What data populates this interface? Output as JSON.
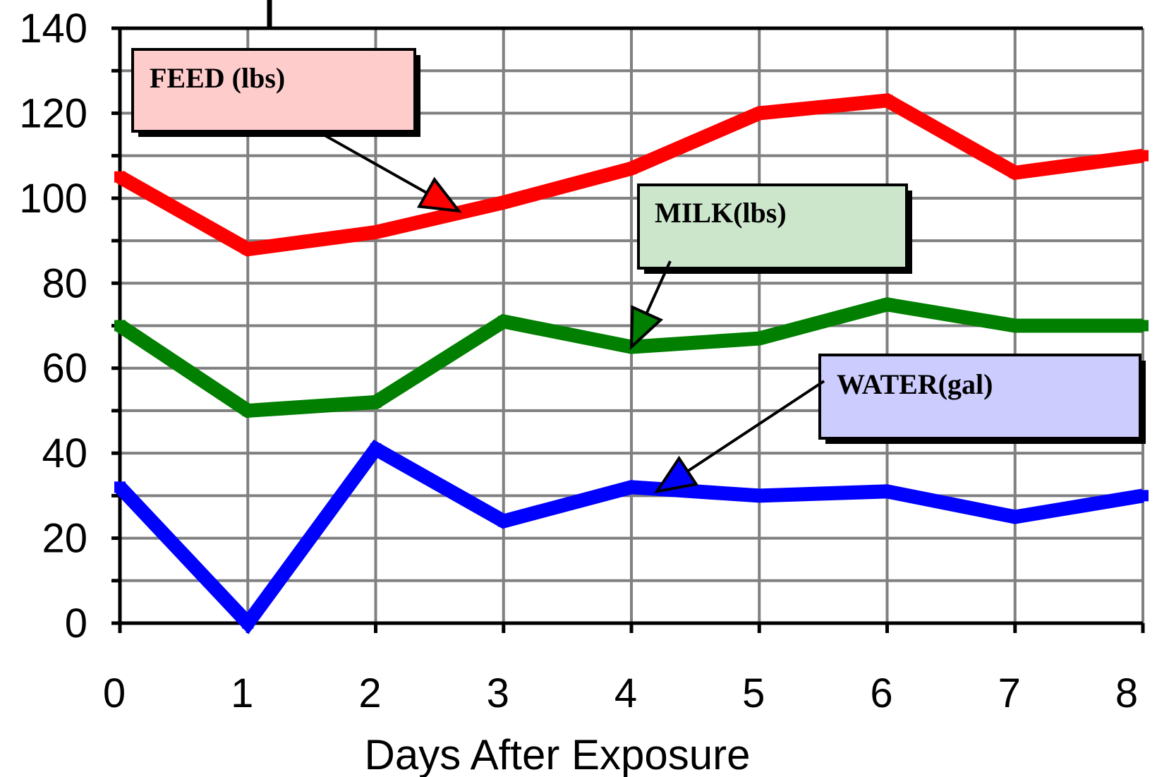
{
  "chart_data": {
    "type": "line",
    "x": [
      0,
      1,
      2,
      3,
      4,
      5,
      6,
      7,
      8
    ],
    "xlim": [
      0,
      8
    ],
    "ylim": [
      0,
      140
    ],
    "xticks": [
      "0",
      "1",
      "2",
      "3",
      "4",
      "5",
      "6",
      "7",
      "8"
    ],
    "yticks": [
      "0",
      "20",
      "40",
      "60",
      "80",
      "100",
      "120",
      "140"
    ],
    "xlabel": "Days After Exposure",
    "grid": true,
    "series": [
      {
        "name": "FEED (lbs)",
        "color": "#ff0000",
        "values": [
          105,
          88,
          92,
          99,
          107,
          120,
          123,
          106,
          110
        ]
      },
      {
        "name": "MILK(lbs)",
        "color": "#007f00",
        "values": [
          70,
          50,
          52,
          71,
          65,
          67,
          75,
          70,
          70
        ]
      },
      {
        "name": "WATER(gal)",
        "color": "#0000ff",
        "values": [
          32,
          0,
          41,
          24,
          32,
          30,
          31,
          25,
          30
        ]
      }
    ],
    "annotations": [
      {
        "label": "FEED (lbs)",
        "fill": "#ffcccc",
        "point_x": 2.65,
        "point_y": 97
      },
      {
        "label": "MILK(lbs)",
        "fill": "#cce6cc",
        "point_x": 4.0,
        "point_y": 65
      },
      {
        "label": "WATER(gal)",
        "fill": "#ccccff",
        "point_x": 4.2,
        "point_y": 31
      }
    ]
  }
}
